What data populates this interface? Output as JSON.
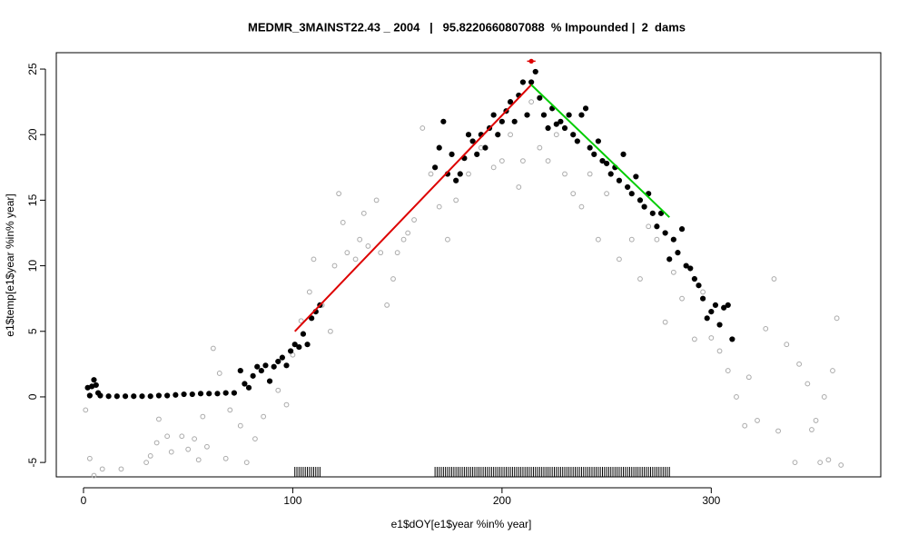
{
  "chart_data": {
    "type": "scatter",
    "title": "MEDMR_3MAINST22.43 _ 2004   |   95.8220660807088  % Impounded |  2  dams",
    "xlabel": "e1$dOY[e1$year %in% year]",
    "ylabel": "e1$temp[e1$year %in% year]",
    "xlim": [
      -13,
      381
    ],
    "ylim": [
      -6.1,
      26.25
    ],
    "xticks": [
      0,
      100,
      200,
      300
    ],
    "yticks": [
      -5,
      0,
      5,
      10,
      15,
      20,
      25
    ],
    "series": [
      {
        "color": "#aaaaaa",
        "filled": false,
        "x": [
          1,
          3,
          5,
          9,
          18,
          30,
          32,
          35,
          36,
          40,
          42,
          47,
          50,
          53,
          55,
          57,
          59,
          62,
          65,
          68,
          70,
          75,
          78,
          82,
          86,
          93,
          97,
          100,
          104,
          108,
          110,
          114,
          118,
          120,
          122,
          124,
          126,
          130,
          132,
          134,
          136,
          140,
          142,
          145,
          148,
          150,
          153,
          155,
          158,
          162,
          166,
          170,
          174,
          178,
          184,
          190,
          196,
          200,
          204,
          208,
          210,
          214,
          218,
          222,
          226,
          230,
          234,
          238,
          242,
          246,
          250,
          256,
          262,
          266,
          270,
          274,
          278,
          282,
          286,
          292,
          296,
          300,
          304,
          308,
          312,
          316,
          318,
          322,
          326,
          330,
          332,
          336,
          340,
          342,
          346,
          348,
          350,
          352,
          354,
          356,
          358,
          360,
          362
        ],
        "values": [
          -1,
          -4.7,
          -6,
          -5.5,
          -5.5,
          -5,
          -4.5,
          -3.5,
          -1.7,
          -3,
          -4.2,
          -3,
          -4,
          -3.2,
          -4.8,
          -1.5,
          -3.8,
          3.7,
          1.8,
          -4.7,
          -1,
          -2.2,
          -5,
          -3.2,
          -1.5,
          0.5,
          -0.6,
          3.2,
          5.8,
          8,
          10.5,
          7,
          5,
          10,
          15.5,
          13.3,
          11,
          10.5,
          12,
          14,
          11.5,
          15,
          11,
          7,
          9,
          11,
          12,
          12.5,
          13.5,
          20.5,
          17,
          14.5,
          12,
          15,
          17,
          19,
          17.5,
          18,
          20,
          16,
          18,
          22.5,
          19,
          18,
          20,
          17,
          15.5,
          14.5,
          17,
          12,
          15.5,
          10.5,
          12,
          9,
          13,
          12,
          5.7,
          9.5,
          7.5,
          4.4,
          8,
          4.5,
          3.5,
          2,
          0,
          -2.2,
          1.5,
          -1.8,
          5.2,
          9,
          -2.6,
          4,
          -5,
          2.5,
          1,
          -2.5,
          -1.8,
          -5,
          0,
          -4.8,
          2,
          6,
          -5.2
        ]
      },
      {
        "color": "#000000",
        "filled": true,
        "x": [
          2,
          3,
          4,
          5,
          6,
          7,
          8,
          12,
          16,
          20,
          24,
          28,
          32,
          36,
          40,
          44,
          48,
          52,
          56,
          60,
          64,
          68,
          72,
          75,
          77,
          79,
          81,
          83,
          85,
          87,
          89,
          91,
          93,
          95,
          97,
          99,
          101,
          103,
          105,
          107,
          109,
          111,
          113,
          168,
          170,
          172,
          174,
          176,
          178,
          180,
          182,
          184,
          186,
          188,
          190,
          192,
          194,
          196,
          198,
          200,
          202,
          204,
          206,
          208,
          210,
          212,
          214,
          216,
          218,
          220,
          222,
          224,
          226,
          228,
          230,
          232,
          234,
          236,
          238,
          240,
          242,
          244,
          246,
          248,
          250,
          252,
          254,
          256,
          258,
          260,
          262,
          264,
          266,
          268,
          270,
          272,
          274,
          276,
          278,
          280,
          282,
          284,
          286,
          288,
          290,
          292,
          294,
          296,
          298,
          300,
          302,
          304,
          306,
          308,
          310
        ],
        "values": [
          0.7,
          0.1,
          0.8,
          1.3,
          0.9,
          0.3,
          0.1,
          0.05,
          0.05,
          0.05,
          0.05,
          0.05,
          0.05,
          0.1,
          0.1,
          0.15,
          0.2,
          0.2,
          0.25,
          0.25,
          0.25,
          0.3,
          0.3,
          2,
          1,
          0.7,
          1.6,
          2.3,
          2,
          2.4,
          1.2,
          2.3,
          2.7,
          3,
          2.4,
          3.5,
          4,
          3.8,
          4.8,
          4,
          6,
          6.5,
          7,
          17.5,
          19,
          21,
          17,
          18.5,
          16.5,
          17,
          18.2,
          20,
          19.5,
          18.5,
          20,
          19,
          20.5,
          21.5,
          20,
          21,
          21.8,
          22.5,
          21,
          23,
          24,
          21.5,
          24,
          24.8,
          22.8,
          21.5,
          20.5,
          22,
          20.8,
          21,
          20.5,
          21.5,
          20,
          19.5,
          21.5,
          22,
          19,
          18.5,
          19.5,
          18,
          17.8,
          17,
          17.5,
          16.5,
          18.5,
          16,
          15.5,
          16.8,
          15,
          14.5,
          15.5,
          14,
          13,
          14,
          12.5,
          10.5,
          12,
          11,
          12.8,
          10,
          9.8,
          9,
          8.5,
          7.5,
          6,
          6.5,
          7,
          5.5,
          6.8,
          7,
          4.4
        ]
      }
    ],
    "fits": [
      {
        "color": "#dd0000",
        "x": [
          101,
          214
        ],
        "values": [
          5,
          23.8
        ]
      },
      {
        "color": "#00cc00",
        "x": [
          214,
          280
        ],
        "values": [
          23.8,
          13.7
        ]
      }
    ],
    "peak": {
      "color": "#dd0000",
      "x": 214,
      "value": 25.6,
      "x_low": 212,
      "x_high": 216
    },
    "rug": [
      101,
      102,
      103,
      104,
      105,
      106,
      107,
      108,
      109,
      110,
      111,
      112,
      113,
      168,
      169,
      170,
      171,
      172,
      173,
      174,
      175,
      176,
      177,
      178,
      179,
      180,
      181,
      182,
      183,
      184,
      185,
      186,
      187,
      188,
      189,
      190,
      191,
      192,
      193,
      194,
      195,
      196,
      197,
      198,
      199,
      200,
      201,
      202,
      203,
      204,
      205,
      206,
      207,
      208,
      209,
      210,
      211,
      212,
      213,
      214,
      215,
      216,
      217,
      218,
      219,
      220,
      221,
      222,
      223,
      224,
      225,
      226,
      227,
      228,
      229,
      230,
      231,
      232,
      233,
      234,
      235,
      236,
      237,
      238,
      239,
      240,
      241,
      242,
      243,
      244,
      245,
      246,
      247,
      248,
      249,
      250,
      251,
      252,
      253,
      254,
      255,
      256,
      257,
      258,
      259,
      260,
      261,
      262,
      263,
      264,
      265,
      266,
      267,
      268,
      269,
      270,
      271,
      272,
      273,
      274,
      275,
      276,
      277,
      278,
      279,
      280
    ]
  }
}
